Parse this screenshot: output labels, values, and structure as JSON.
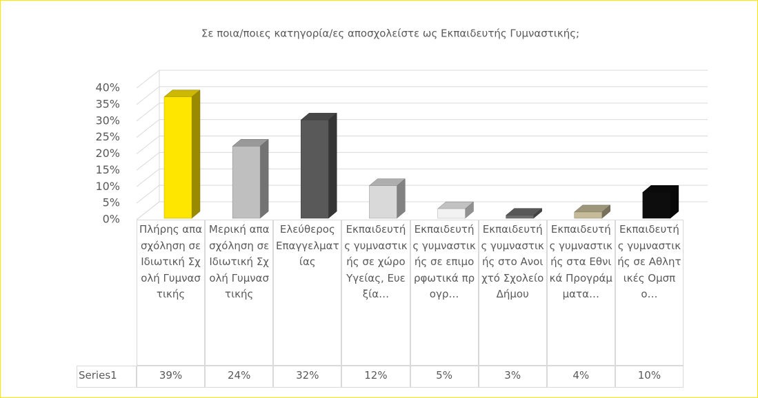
{
  "chart_data": {
    "type": "bar3d",
    "title": "Σε ποια/ποιες κατηγορία/ες αποσχολείστε ως Εκπαιδευτής Γυμναστικής;",
    "categories": [
      "Πλήρης απασχόληση σε Ιδιωτική Σχολή Γυμναστικής",
      "Μερική απασχόληση σε Ιδιωτική Σχολή Γυμναστικής",
      "Ελεύθερος Επαγγελματίας",
      "Εκπαιδευτής γυμναστικής σε χώρο Υγείας, Ευεξία…",
      "Εκπαιδευτής γυμναστικής σε επιμορφωτικά προγρ…",
      "Εκπαιδευτής γυμναστικής στο Ανοιχτό Σχολείο Δήμου",
      "Εκπαιδευτής γυμναστικής στα Εθνικά Προγράμματα…",
      "Εκπαιδευτής γυμναστικής σε Αθλητικές Ομσπο…"
    ],
    "series": [
      {
        "name": "Series1",
        "values": [
          39,
          24,
          32,
          12,
          5,
          3,
          4,
          10
        ],
        "value_labels": [
          "39%",
          "24%",
          "32%",
          "12%",
          "5%",
          "3%",
          "4%",
          "10%"
        ],
        "colors": [
          "#ffe600",
          "#bfbfbf",
          "#595959",
          "#d9d9d9",
          "#f2f2f2",
          "#6e6e6e",
          "#c6bb98",
          "#0d0d0d"
        ]
      }
    ],
    "ylim": [
      0,
      40
    ],
    "yticks": [
      {
        "value": 0,
        "label": "0%"
      },
      {
        "value": 5,
        "label": "5%"
      },
      {
        "value": 10,
        "label": "10%"
      },
      {
        "value": 15,
        "label": "15%"
      },
      {
        "value": 20,
        "label": "20%"
      },
      {
        "value": 25,
        "label": "25%"
      },
      {
        "value": 30,
        "label": "30%"
      },
      {
        "value": 35,
        "label": "35%"
      },
      {
        "value": 40,
        "label": "40%"
      }
    ],
    "grid": true
  }
}
